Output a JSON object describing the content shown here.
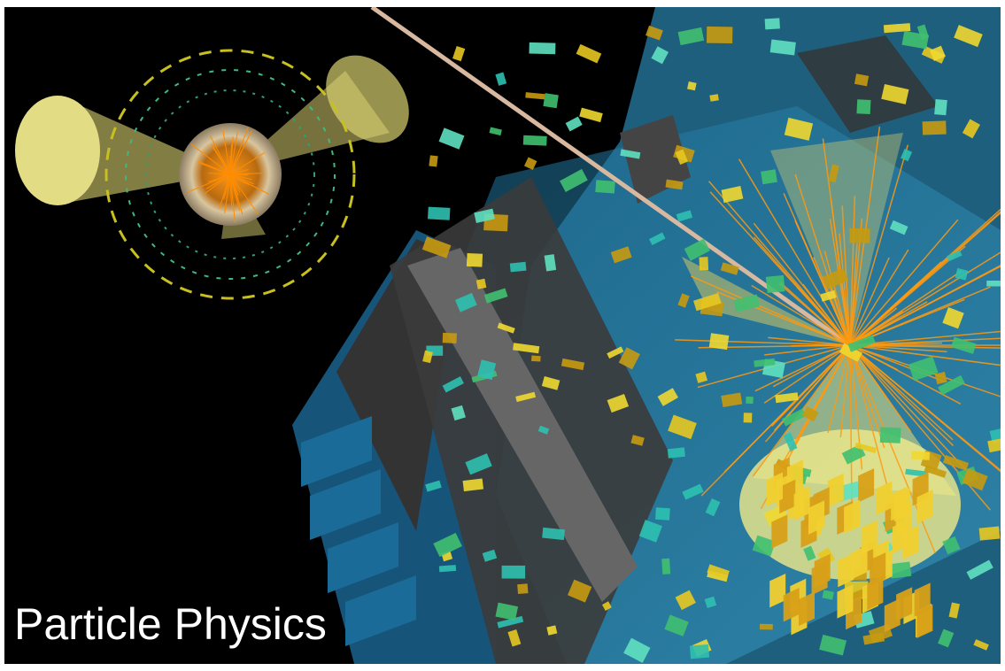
{
  "caption": "Particle Physics"
}
